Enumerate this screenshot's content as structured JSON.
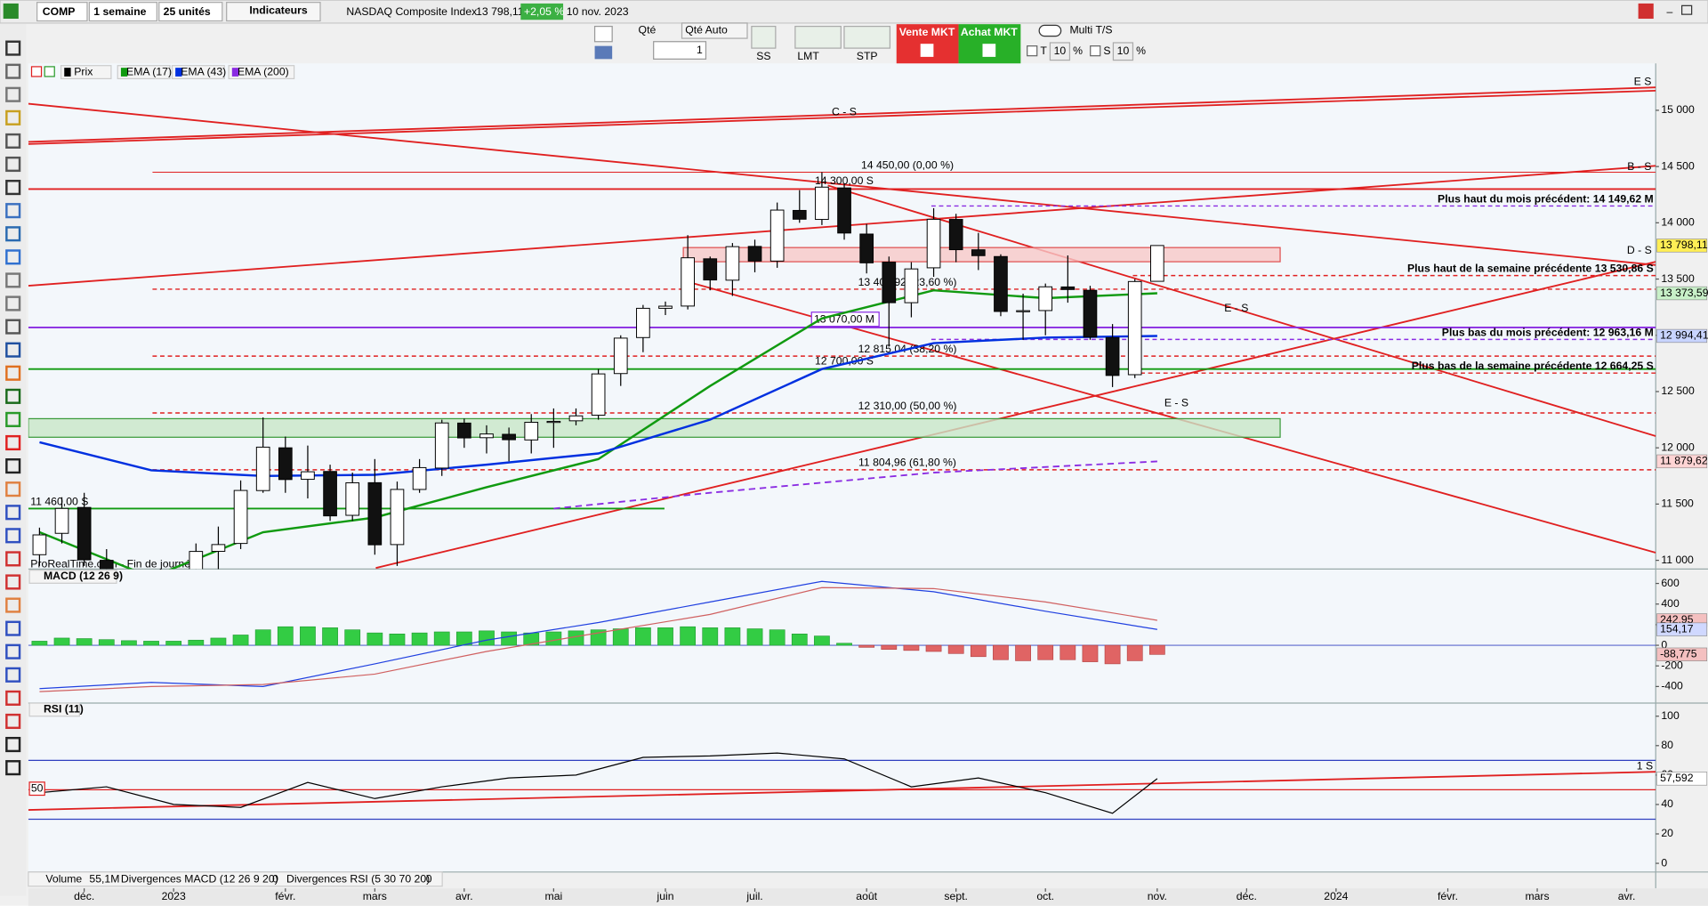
{
  "toolbar": {
    "symbol": "COMP",
    "period": "1 semaine",
    "units": "25 unités",
    "indicators": "Indicateurs",
    "name": "NASDAQ Composite Index",
    "last": "13 798,11",
    "change": "+2,05 %",
    "date": "10 nov. 2023"
  },
  "order_bar": {
    "qty_label": "Qté",
    "qty_auto": "Qté Auto",
    "qty": 1,
    "ss": "SS",
    "lmt": "LMT",
    "stp": "STP",
    "sell": "Vente MKT",
    "buy": "Achat MKT",
    "multi": "Multi T/S",
    "t": "T",
    "t_value": 10,
    "t_unit": "%",
    "s": "S",
    "s_value": 10,
    "s_unit": "%"
  },
  "watermark": "ProRealTime.com - Fin de journée",
  "chart_data": [
    {
      "type": "candlestick",
      "xlim": [
        -0.5,
        72.3
      ],
      "xticks": [
        {
          "value": 2,
          "label": "déc."
        },
        {
          "value": 6,
          "label": "2023"
        },
        {
          "value": 11,
          "label": "févr."
        },
        {
          "value": 15,
          "label": "mars"
        },
        {
          "value": 19,
          "label": "avr."
        },
        {
          "value": 23,
          "label": "mai"
        },
        {
          "value": 28,
          "label": "juin"
        },
        {
          "value": 32,
          "label": "juil."
        },
        {
          "value": 37,
          "label": "août"
        },
        {
          "value": 41,
          "label": "sept."
        },
        {
          "value": 45,
          "label": "oct."
        },
        {
          "value": 50,
          "label": "nov."
        },
        {
          "value": 54,
          "label": "déc."
        },
        {
          "value": 58,
          "label": "2024"
        },
        {
          "value": 63,
          "label": "févr."
        },
        {
          "value": 67,
          "label": "mars"
        },
        {
          "value": 71,
          "label": "avr."
        }
      ],
      "ylim": [
        10932,
        15378
      ],
      "yticks": [
        {
          "value": 11000,
          "label": "11 000"
        },
        {
          "value": 11500,
          "label": "11 500"
        },
        {
          "value": 12000,
          "label": "12 000"
        },
        {
          "value": 12500,
          "label": "12 500"
        },
        {
          "value": 13000,
          "label": "13 000"
        },
        {
          "value": 13500,
          "label": "13 500"
        },
        {
          "value": 14000,
          "label": "14 000"
        },
        {
          "value": 14500,
          "label": "14 500"
        },
        {
          "value": 15000,
          "label": "15 000"
        }
      ],
      "series": [
        {
          "name": "Prix",
          "color": "#000000",
          "open": [
            11050,
            11240,
            11470,
            11000,
            10700,
            10500,
            10470,
            10570,
            11080,
            11150,
            11620,
            12000,
            11720,
            11790,
            11400,
            11690,
            11140,
            11630,
            11820,
            12220,
            12090,
            12120,
            12070,
            12230,
            12240,
            12290,
            12660,
            12980,
            13240,
            13260,
            13680,
            13490,
            13790,
            13660,
            14110,
            14030,
            14310,
            13900,
            13650,
            13290,
            13600,
            14030,
            13760,
            13700,
            13210,
            13220,
            13430,
            13400,
            12980,
            12650,
            13480
          ],
          "high": [
            11290,
            11560,
            11600,
            11100,
            10800,
            10620,
            10700,
            11150,
            11300,
            11710,
            12270,
            12100,
            12020,
            11850,
            11780,
            11900,
            11700,
            11900,
            12250,
            12260,
            12200,
            12180,
            12300,
            12350,
            12350,
            12700,
            13000,
            13270,
            13300,
            13890,
            13700,
            13820,
            13850,
            14180,
            14290,
            14450,
            14350,
            13990,
            13700,
            13650,
            14130,
            14080,
            13910,
            13720,
            13370,
            13460,
            13710,
            13440,
            13100,
            13500,
            13800
          ],
          "low": [
            10950,
            11150,
            10950,
            10600,
            10400,
            10350,
            10300,
            10500,
            10900,
            11100,
            11600,
            11600,
            11550,
            11350,
            11350,
            11050,
            10950,
            11600,
            11750,
            12000,
            11950,
            11880,
            11950,
            12000,
            12200,
            12250,
            12550,
            12850,
            13180,
            13230,
            13400,
            13350,
            13560,
            13600,
            14000,
            13980,
            13850,
            13550,
            12900,
            13160,
            13520,
            13650,
            13580,
            13170,
            12960,
            13000,
            13290,
            12960,
            12540,
            12620,
            13480
          ],
          "close": [
            11226,
            11461,
            11004,
            10705,
            10497,
            10466,
            10569,
            11079,
            11140,
            11621,
            12006,
            11718,
            11787,
            11395,
            11689,
            11138,
            11630,
            11824,
            12221,
            12088,
            12123,
            12072,
            12227,
            12235,
            12284,
            12657,
            12975,
            13240,
            13259,
            13689,
            13492,
            13788,
            13660,
            14113,
            14032,
            14317,
            13909,
            13644,
            13290,
            13590,
            14031,
            13761,
            13708,
            13212,
            13219,
            13431,
            13407,
            12984,
            12643,
            13478,
            13798
          ]
        },
        {
          "name": "EMA (17)",
          "color": "#109a10",
          "x": [
            0,
            5,
            10,
            15,
            20,
            25,
            30,
            35,
            40,
            45,
            50
          ],
          "values": [
            11250,
            10850,
            11250,
            11380,
            11650,
            11900,
            12550,
            13150,
            13400,
            13330,
            13373.59
          ]
        },
        {
          "name": "EMA (43)",
          "color": "#0030e0",
          "x": [
            0,
            5,
            10,
            15,
            20,
            25,
            30,
            35,
            40,
            45,
            50
          ],
          "values": [
            12050,
            11800,
            11750,
            11760,
            11850,
            11950,
            12250,
            12700,
            12930,
            12980,
            12994.41
          ]
        },
        {
          "name": "EMA (200)",
          "color": "#8a2be2",
          "dash": true,
          "x": [
            23,
            30,
            40,
            50
          ],
          "values": [
            11460,
            11600,
            11780,
            11879.62
          ]
        }
      ],
      "zones": [
        {
          "from": 13654,
          "to": 13780,
          "color": "#f7c8c8",
          "stroke": "#e05050"
        },
        {
          "from": 12094,
          "to": 12259,
          "color": "#c8e6c8",
          "stroke": "#3a9a3a"
        }
      ],
      "levels": [
        {
          "value": 14450,
          "label": "14 450,00 (0,00 %)",
          "color": "#e02020",
          "dash": false
        },
        {
          "value": 14300,
          "label": "14 300,00 S",
          "color": "#e02020",
          "dash": false
        },
        {
          "value": 14149.62,
          "label": "Plus haut du mois précédent: 14 149,62 M",
          "color": "#8a2be2",
          "dash": true
        },
        {
          "value": 13530.86,
          "label": "Plus haut de la semaine précédente  13 530,86 S",
          "color": "#e02020",
          "dash": true
        },
        {
          "value": 13409.92,
          "label": "13 409,92 (23,60 %)",
          "color": "#e02020",
          "dash": true
        },
        {
          "value": 13070,
          "label": "13 070,00 M",
          "color": "#8a2be2",
          "dash": false
        },
        {
          "value": 12963.16,
          "label": "Plus bas du mois précédent: 12 963,16 M",
          "color": "#8a2be2",
          "dash": true
        },
        {
          "value": 12815.04,
          "label": "12 815,04 (38,20 %)",
          "color": "#e02020",
          "dash": true
        },
        {
          "value": 12700,
          "label": "12 700,00 S",
          "color": "#109a10",
          "dash": false
        },
        {
          "value": 12664.25,
          "label": "Plus bas de la semaine précédente  12 664,25 S",
          "color": "#e02020",
          "dash": true
        },
        {
          "value": 12310,
          "label": "12 310,00 (50,00 %)",
          "color": "#e02020",
          "dash": true
        },
        {
          "value": 11804.96,
          "label": "11 804,96 (61,80 %)",
          "color": "#e02020",
          "dash": true
        },
        {
          "value": 11460,
          "label": "11 460,00 S",
          "color": "#109a10",
          "dash": false
        }
      ],
      "price_tags": [
        {
          "value": 13798.11,
          "label": "13 798,11",
          "color": "#ffee55"
        },
        {
          "value": 13373.59,
          "label": "13 373,59",
          "color": "#c8f0c8"
        },
        {
          "value": 12994.41,
          "label": "12 994,41",
          "color": "#c8d4ff"
        },
        {
          "value": 11879.62,
          "label": "11 879,62",
          "color": "#ffd4d4"
        }
      ],
      "trend_labels": [
        "E S",
        "C - S",
        "B - S",
        "D - S",
        "E - S",
        "E - S"
      ]
    },
    {
      "type": "macd",
      "title": "MACD (12 26 9)",
      "ylim": [
        -561,
        729
      ],
      "yticks": [
        600,
        400,
        200,
        0,
        -200,
        -400
      ],
      "histogram": [
        40,
        70,
        65,
        55,
        45,
        40,
        40,
        50,
        70,
        100,
        150,
        180,
        180,
        170,
        150,
        120,
        110,
        120,
        130,
        130,
        140,
        130,
        120,
        130,
        140,
        150,
        160,
        170,
        170,
        180,
        170,
        170,
        160,
        150,
        110,
        90,
        20,
        -20,
        -40,
        -50,
        -60,
        -80,
        -110,
        -140,
        -150,
        -140,
        -140,
        -160,
        -180,
        -150,
        -88.775
      ],
      "series": [
        {
          "color": "#2040e0",
          "x": [
            0,
            5,
            10,
            15,
            20,
            25,
            30,
            35,
            40,
            45,
            50
          ],
          "values": [
            -420,
            -360,
            -400,
            -180,
            50,
            220,
            420,
            620,
            520,
            330,
            154.17
          ]
        },
        {
          "color": "#d06060",
          "x": [
            0,
            5,
            10,
            15,
            20,
            25,
            30,
            35,
            40,
            45,
            50
          ],
          "values": [
            -450,
            -400,
            -380,
            -280,
            -60,
            120,
            300,
            560,
            550,
            420,
            242.95
          ]
        }
      ],
      "tags": [
        {
          "value": 242.95,
          "label": "242,95",
          "color": "#f4c0c0"
        },
        {
          "value": 154.17,
          "label": "154,17",
          "color": "#d0d8ff"
        },
        {
          "value": -88.775,
          "label": "-88,775",
          "color": "#f4c0c0"
        }
      ]
    },
    {
      "type": "rsi",
      "title": "RSI (11)",
      "ylim": [
        -5.9,
        108.9
      ],
      "yticks": [
        100,
        80,
        60,
        40,
        20,
        0
      ],
      "color": "#000000",
      "x": [
        0,
        3,
        6,
        9,
        12,
        15,
        18,
        21,
        24,
        27,
        30,
        33,
        36,
        39,
        42,
        45,
        48,
        50
      ],
      "values": [
        48,
        52,
        40,
        38,
        55,
        44,
        52,
        58,
        60,
        72,
        73,
        75,
        71,
        52,
        58,
        48,
        34,
        57.592
      ],
      "levels": [
        {
          "value": 70,
          "color": "#3040c0",
          "show_label": false
        },
        {
          "value": 50,
          "color": "#e02020",
          "show_label": true
        },
        {
          "value": 30,
          "color": "#3040c0",
          "show_label": false
        }
      ],
      "tags": [
        {
          "value": 57.592,
          "label": "57,592",
          "color": "#ffffff"
        }
      ],
      "trend_label": "1 S"
    }
  ],
  "footer": {
    "volume": "Volume",
    "volume_value": "55,1M",
    "div_macd": "Divergences MACD (12 26 9 20)",
    "div_macd_value": 0,
    "div_rsi": "Divergences RSI (5 30 70 20)",
    "div_rsi_value": 0
  }
}
